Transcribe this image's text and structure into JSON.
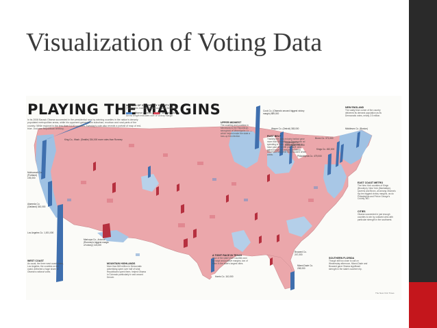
{
  "slide": {
    "title": "Visualization of Voting Data"
  },
  "figure": {
    "title": "PLAYING THE MARGINS",
    "intro": "In its 2008 Barack Obama succeeded in the presidential race by winning counties in the nation's densely populated metropolitan areas, while his opponent gained from suburban, exurban and rural parts of the country. While regional in the less than 3,100 counties, Tuesday's vote also reveals a portrait of map of red-blue. Just see Republican territory.",
    "legend": {
      "title": "MARGIN OF VICTORY BY COUNTY",
      "subtitle": "(Total votes each candidate won over the other)",
      "dem_label": "Obama victories",
      "rep_label": "McCain victories",
      "note": "Arrow length indicates size of victory margin"
    },
    "callouts": [
      {
        "text": "King Co., Wash. (Seattle) 334,000 more votes than Romney"
      },
      {
        "text": "Cook Co. (Obama's second biggest victory margin) 889,000"
      },
      {
        "text": "Harris Co. 110,000"
      },
      {
        "text": "Bronx Co. 371,000"
      },
      {
        "text": "Kings Co. 452,000"
      },
      {
        "text": "Middlesex Co. (Boston)"
      },
      {
        "text": "Wayne Co. (Detroit) 383,000"
      },
      {
        "text": "Cuyahoga Co. (Cleveland) 250,000"
      },
      {
        "text": "Philadelphia Co. 479,000"
      },
      {
        "text": "Los Angeles Co. 1,001,000"
      },
      {
        "text": "Alameda Co. (Oakland) 343,000"
      },
      {
        "text": "Multnomah Co. (Portland) 193,000"
      },
      {
        "text": "Maricopa Co., Arizona (Romney's biggest margin of victory) 115,000"
      },
      {
        "text": "Broward Co. 247,000"
      },
      {
        "text": "Miami-Dade Co. 208,000"
      }
    ],
    "annotations": [
      {
        "heading": "UPPER MIDWEST",
        "body": "The counting and counties in Minnesota to the Republican stronghold of Minneapolis Co. — which helped make the state a toss-up this election."
      },
      {
        "heading": "RUST BELT",
        "body": "Tracking the auto-industry bailout gave more than $30 million to Democratic ad spending in Ohio, which appeared to have paid off for the president, who gained large net margins in Detroit, Cleveland and other auto-focused urban areas."
      },
      {
        "heading": "NEW ENGLAND",
        "body": "The vastly blue corner of the country delivered its densest population as its Democratic votes, nearly 2.5 million."
      },
      {
        "heading": "EAST COAST METRO",
        "body": "The New York counties of Kings (Brooklyn), New York (Manhattan), Queens and Bronx, all among Obama's top ten biggest victory margins, as do Philadelphia and Prince George's County, MD."
      },
      {
        "heading": "CITIES",
        "body": "Obama succeeded in just enough counties to win by outsized wins with particular strength in the southwest."
      },
      {
        "heading": "WEST COAST",
        "body": "As usual, the three west coast states, Los Angeles, the counties on the coast, delivered a huge share of Obama's national votes."
      },
      {
        "heading": "MOUNTAIN HIGHLANDS",
        "body": "More than $40 million in Democratic advertising spent over half of what Republicans spent there, helped Obama in Colorado particularly in and around Denver."
      },
      {
        "heading": "A TIGHT RACE IN TEXAS",
        "body": "Four of the state's five counties won by large and positive margins, two of them in the state's largest cities."
      },
      {
        "heading": "SOUTHERN FLORIDA",
        "body": "Though still too close to call on Wednesday afternoon, Miami-Dade and Broward gave Obama significant strength in the state's southern tip."
      }
    ],
    "credit": "The New York Times",
    "colors": {
      "democrat": "#4f86c8",
      "republican": "#e06b79",
      "land_red": "#eaa1a5",
      "land_blue": "#9fc1e3",
      "water": "#fbfbf8"
    }
  }
}
